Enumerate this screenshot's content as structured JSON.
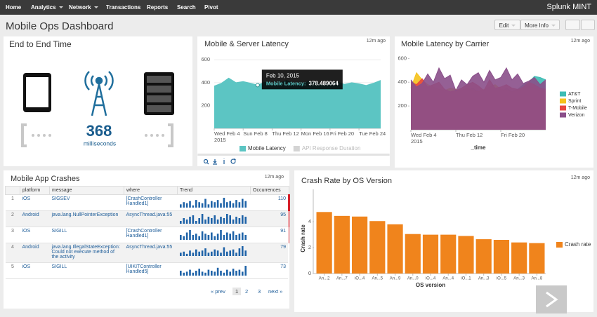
{
  "nav": {
    "items": [
      "Home",
      "Analytics",
      "Network",
      "Transactions",
      "Reports",
      "Search",
      "Pivot"
    ],
    "brand": "Splunk MINT"
  },
  "header": {
    "title": "Mobile Ops Dashboard",
    "buttons": [
      "Edit",
      "More Info"
    ]
  },
  "end_to_end": {
    "title": "End to End Time",
    "value": 368,
    "unit": "milliseconds"
  },
  "crashes": {
    "title": "Mobile App Crashes",
    "updated": "12m ago",
    "columns": [
      "platform",
      "message",
      "where",
      "Trend",
      "Occurrences"
    ],
    "rows": [
      {
        "index": 1,
        "platform": "iOS",
        "message": "SIGSEV",
        "where": "[CrashController Handled1]",
        "trend": [
          3,
          5,
          4,
          6,
          2,
          7,
          5,
          4,
          8,
          3,
          6,
          5,
          7,
          4,
          9,
          5,
          6,
          4,
          7,
          5,
          8,
          6
        ],
        "occurrences": 110
      },
      {
        "index": 2,
        "platform": "Android",
        "message": "java.lang.NullPointerException",
        "where": "AsyncThread.java:55",
        "trend": [
          2,
          4,
          3,
          5,
          6,
          2,
          4,
          7,
          3,
          5,
          4,
          6,
          3,
          5,
          4,
          7,
          6,
          3,
          5,
          4,
          6,
          5
        ],
        "occurrences": 95
      },
      {
        "index": 3,
        "platform": "iOS",
        "message": "SIGILL",
        "where": "[CrashController Handled1]",
        "trend": [
          4,
          3,
          6,
          8,
          4,
          5,
          3,
          7,
          5,
          4,
          6,
          3,
          5,
          8,
          4,
          6,
          5,
          7,
          4,
          5,
          6,
          4
        ],
        "occurrences": 91
      },
      {
        "index": 4,
        "platform": "Android",
        "message": "java.lang.IllegalStateException: Could not execute method of the activity",
        "where": "AsyncThread.java:55",
        "trend": [
          3,
          4,
          2,
          5,
          3,
          6,
          4,
          5,
          7,
          3,
          4,
          6,
          5,
          3,
          8,
          4,
          5,
          6,
          3,
          7,
          9,
          5
        ],
        "occurrences": 79
      },
      {
        "index": 5,
        "platform": "iOS",
        "message": "SIGILL",
        "where": "[UIKITController Handled5]",
        "trend": [
          5,
          3,
          4,
          6,
          3,
          5,
          7,
          4,
          3,
          6,
          5,
          4,
          8,
          5,
          3,
          6,
          4,
          7,
          5,
          6,
          4,
          10
        ],
        "occurrences": 73
      }
    ],
    "pagination": [
      "« prev",
      "1",
      "2",
      "3",
      "next »"
    ]
  },
  "chart_data": [
    {
      "type": "area",
      "title": "Mobile & Server Latency",
      "updated": "12m ago",
      "x": [
        "2015-02-04",
        "2015-02-05",
        "2015-02-06",
        "2015-02-07",
        "2015-02-08",
        "2015-02-09",
        "2015-02-10",
        "2015-02-11",
        "2015-02-12",
        "2015-02-13",
        "2015-02-14",
        "2015-02-15",
        "2015-02-16",
        "2015-02-17",
        "2015-02-18",
        "2015-02-19",
        "2015-02-20",
        "2015-02-21",
        "2015-02-22",
        "2015-02-23",
        "2015-02-24",
        "2015-02-25",
        "2015-02-26",
        "2015-02-27"
      ],
      "series": [
        {
          "name": "Mobile Latency",
          "color": "#5cc5c3",
          "values": [
            370,
            395,
            440,
            400,
            410,
            395,
            378.489064,
            405,
            380,
            395,
            420,
            390,
            385,
            410,
            400,
            380,
            395,
            405,
            385,
            400,
            390,
            375,
            395,
            420
          ]
        }
      ],
      "legend": [
        {
          "name": "Mobile Latency",
          "color": "#5cc5c3"
        },
        {
          "name": "API Response Duration",
          "color": "#d4d4d4"
        }
      ],
      "xlim": [
        "2015-02-04",
        "2015-02-27"
      ],
      "xticks": [
        {
          "value": "2015-02-04",
          "label": "Wed Feb 4\n2015"
        },
        {
          "value": "2015-02-08",
          "label": "Sun Feb 8"
        },
        {
          "value": "2015-02-12",
          "label": "Thu Feb 12"
        },
        {
          "value": "2015-02-16",
          "label": "Mon Feb 16"
        },
        {
          "value": "2015-02-20",
          "label": "Fri Feb 20"
        },
        {
          "value": "2015-02-24",
          "label": "Tue Feb 24"
        }
      ],
      "ylim": [
        0,
        620
      ],
      "yticks": [
        200,
        400,
        600
      ],
      "grid": true,
      "tooltip": {
        "x": "2015-02-10",
        "title": "Feb 10, 2015",
        "label": "Mobile Latency:",
        "value": 378.489064
      }
    },
    {
      "type": "area",
      "title": "Mobile Latency by Carrier",
      "updated": "12m ago",
      "xlabel": "_time",
      "x": [
        "2015-02-04",
        "2015-02-05",
        "2015-02-06",
        "2015-02-07",
        "2015-02-08",
        "2015-02-09",
        "2015-02-10",
        "2015-02-11",
        "2015-02-12",
        "2015-02-13",
        "2015-02-14",
        "2015-02-15",
        "2015-02-16",
        "2015-02-17",
        "2015-02-18",
        "2015-02-19",
        "2015-02-20",
        "2015-02-21",
        "2015-02-22",
        "2015-02-23",
        "2015-02-24",
        "2015-02-25",
        "2015-02-26",
        "2015-02-27",
        "2015-02-28"
      ],
      "series": [
        {
          "name": "AT&T",
          "color": "#3cbcb4",
          "values": [
            300,
            320,
            350,
            300,
            320,
            330,
            300,
            310,
            320,
            300,
            330,
            350,
            320,
            300,
            340,
            330,
            310,
            350,
            320,
            340,
            380,
            400,
            450,
            440,
            420
          ]
        },
        {
          "name": "Sprint",
          "color": "#f5c21b",
          "values": [
            350,
            480,
            420,
            380,
            360,
            340,
            330,
            350,
            340,
            330,
            350,
            330,
            320,
            340,
            360,
            380,
            340,
            330,
            320,
            330,
            340,
            360,
            350,
            330,
            320
          ]
        },
        {
          "name": "T-Mobile",
          "color": "#e8473e",
          "values": [
            400,
            380,
            430,
            360,
            380,
            400,
            340,
            320,
            330,
            350,
            380,
            400,
            370,
            330,
            420,
            350,
            360,
            380,
            350,
            340,
            360,
            400,
            380,
            350,
            340
          ]
        },
        {
          "name": "Verizon",
          "color": "#8a4f8a",
          "values": [
            420,
            360,
            390,
            470,
            400,
            520,
            430,
            460,
            330,
            420,
            380,
            450,
            480,
            400,
            500,
            420,
            440,
            520,
            420,
            470,
            390,
            410,
            440,
            380,
            420
          ]
        }
      ],
      "xlim": [
        "2015-02-04",
        "2015-02-28"
      ],
      "xticks": [
        {
          "value": "2015-02-04",
          "label": "Wed Feb 4\n2015"
        },
        {
          "value": "2015-02-12",
          "label": "Thu Feb 12"
        },
        {
          "value": "2015-02-20",
          "label": "Fri Feb 20"
        }
      ],
      "ylim": [
        0,
        620
      ],
      "yticks": [
        200,
        400,
        600
      ],
      "grid": false
    },
    {
      "type": "bar",
      "title": "Crash Rate by OS Version",
      "updated": "12m ago",
      "xlabel": "OS version",
      "ylabel": "Crash rate",
      "categories": [
        "An...2",
        "An...7",
        "iO...4",
        "An...5",
        "An...9",
        "An...0",
        "iO...4",
        "An...4",
        "iO...1",
        "An...3",
        "iO...5",
        "An...3",
        "An...8"
      ],
      "series": [
        {
          "name": "Crash rate",
          "color": "#f0841c",
          "values": [
            4.75,
            4.45,
            4.4,
            4.05,
            3.8,
            3.05,
            3.0,
            3.0,
            2.9,
            2.65,
            2.6,
            2.4,
            2.35
          ]
        }
      ],
      "ylim": [
        0,
        6.5
      ],
      "yticks": [
        0,
        2,
        4
      ],
      "grid": false
    }
  ]
}
